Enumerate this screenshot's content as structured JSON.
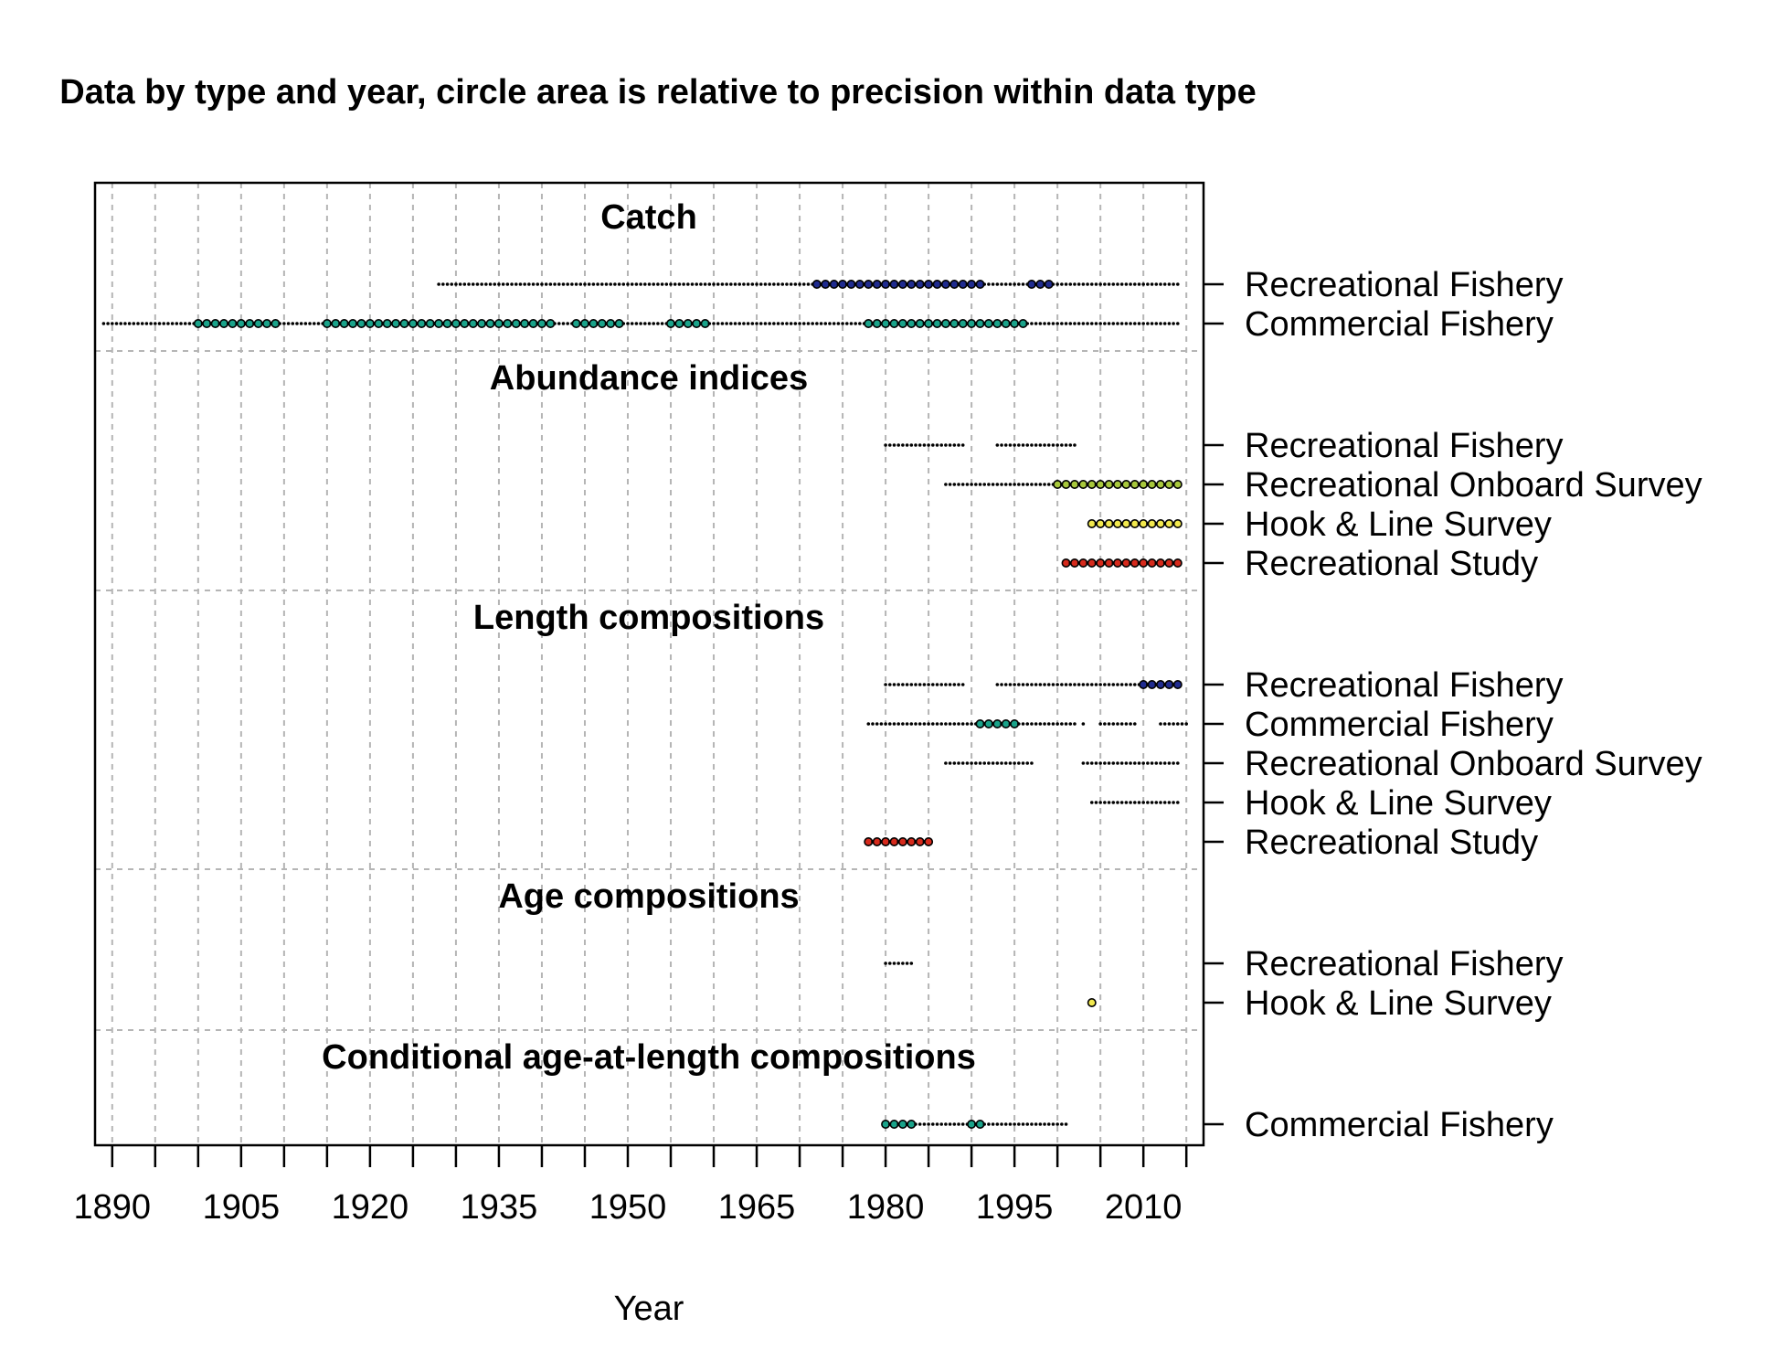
{
  "chart_data": {
    "type": "scatter",
    "title": "Data by type and year, circle area is relative to precision within data type",
    "xlabel": "Year",
    "xlim": [
      1888,
      2017
    ],
    "x_ticks": [
      1890,
      1895,
      1900,
      1905,
      1910,
      1915,
      1920,
      1925,
      1930,
      1935,
      1940,
      1945,
      1950,
      1955,
      1960,
      1965,
      1970,
      1975,
      1980,
      1985,
      1990,
      1995,
      2000,
      2005,
      2010,
      2015
    ],
    "x_tick_labels": [
      "1890",
      "1905",
      "1920",
      "1935",
      "1950",
      "1965",
      "1980",
      "1995",
      "2010"
    ],
    "x_tick_label_values": [
      1890,
      1905,
      1920,
      1935,
      1950,
      1965,
      1980,
      1995,
      2010
    ],
    "grid": true,
    "point_colors": {
      "Recreational Fishery": "#1f2b8f",
      "Commercial Fishery": "#1aa38a",
      "Recreational Onboard Survey": "#a8c83c",
      "Hook & Line Survey": "#f2e94e",
      "Recreational Study": "#d62a1c"
    },
    "groups": [
      {
        "label": "Catch",
        "series": [
          {
            "name": "Recreational Fishery",
            "years": [
              1928,
              2014
            ],
            "large": [
              [
                1972,
                1991
              ],
              [
                1997,
                1999
              ]
            ]
          },
          {
            "name": "Commercial Fishery",
            "years": [
              1889,
              2014
            ],
            "large": [
              [
                1900,
                1909
              ],
              [
                1915,
                1941
              ],
              [
                1944,
                1949
              ],
              [
                1955,
                1959
              ],
              [
                1978,
                1996
              ]
            ]
          }
        ]
      },
      {
        "label": "Abundance indices",
        "series": [
          {
            "name": "Recreational Fishery",
            "years": [
              [
                1980,
                1989
              ],
              [
                1993,
                2002
              ]
            ],
            "large": []
          },
          {
            "name": "Recreational Onboard Survey",
            "years": [
              1987,
              2014
            ],
            "large": [
              [
                2000,
                2014
              ]
            ]
          },
          {
            "name": "Hook & Line Survey",
            "years": [
              2004,
              2014
            ],
            "large": [
              [
                2004,
                2014
              ]
            ]
          },
          {
            "name": "Recreational Study",
            "years": [
              2001,
              2014
            ],
            "large": [
              [
                2001,
                2014
              ]
            ]
          }
        ]
      },
      {
        "label": "Length compositions",
        "series": [
          {
            "name": "Recreational Fishery",
            "years": [
              [
                1980,
                1989
              ],
              [
                1993,
                2014
              ]
            ],
            "large": [
              [
                2010,
                2014
              ]
            ]
          },
          {
            "name": "Commercial Fishery",
            "years": [
              [
                1978,
                2002
              ],
              [
                2003,
                2003
              ],
              [
                2005,
                2009
              ],
              [
                2012,
                2015
              ]
            ],
            "large": [
              [
                1991,
                1995
              ]
            ]
          },
          {
            "name": "Recreational Onboard Survey",
            "years": [
              [
                1987,
                1997
              ],
              [
                2003,
                2014
              ]
            ],
            "large": []
          },
          {
            "name": "Hook & Line Survey",
            "years": [
              2004,
              2014
            ],
            "large": []
          },
          {
            "name": "Recreational Study",
            "years": [
              1978,
              1985
            ],
            "large": [
              [
                1978,
                1985
              ]
            ]
          }
        ]
      },
      {
        "label": "Age compositions",
        "series": [
          {
            "name": "Recreational Fishery",
            "years": [
              1980,
              1983
            ],
            "large": []
          },
          {
            "name": "Hook & Line Survey",
            "years": [
              2004,
              2004
            ],
            "large": [
              [
                2004,
                2004
              ]
            ]
          }
        ]
      },
      {
        "label": "Conditional age-at-length compositions",
        "series": [
          {
            "name": "Commercial Fishery",
            "years": [
              1980,
              2001
            ],
            "large": [
              [
                1980,
                1983
              ],
              [
                1990,
                1991
              ]
            ]
          }
        ]
      }
    ]
  }
}
